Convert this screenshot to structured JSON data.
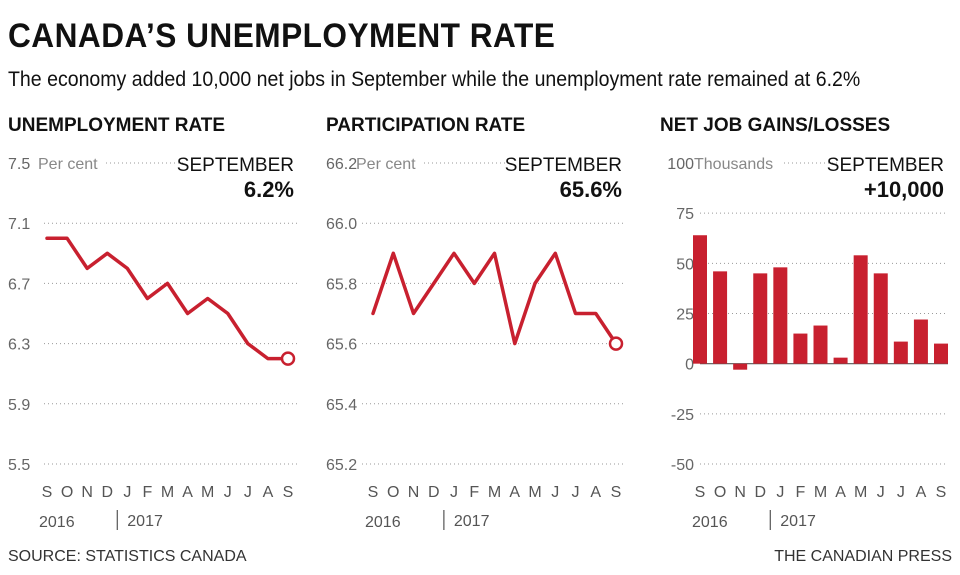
{
  "title": "CANADA’S UNEMPLOYMENT RATE",
  "subtitle": "The economy added 10,000 net jobs in September while the unemployment rate remained at 6.2%",
  "source": "SOURCE: STATISTICS CANADA",
  "credit": "THE CANADIAN PRESS",
  "colors": {
    "accent": "#c8202f",
    "grid": "#9a9a9a",
    "text": "#111111",
    "axis": "#555555"
  },
  "chart_data": [
    {
      "type": "line",
      "title": "UNEMPLOYMENT RATE",
      "unit_label": "Per cent",
      "callout_label": "SEPTEMBER",
      "callout_value": "6.2%",
      "categories": [
        "S",
        "O",
        "N",
        "D",
        "J",
        "F",
        "M",
        "A",
        "M",
        "J",
        "J",
        "A",
        "S"
      ],
      "year_labels": [
        "2016",
        "2017"
      ],
      "values": [
        7.0,
        7.0,
        6.8,
        6.9,
        6.8,
        6.6,
        6.7,
        6.5,
        6.6,
        6.5,
        6.3,
        6.2,
        6.2
      ],
      "ylim": [
        5.5,
        7.5
      ],
      "yticks": [
        "7.5",
        "7.1",
        "6.7",
        "6.3",
        "5.9",
        "5.5"
      ]
    },
    {
      "type": "line",
      "title": "PARTICIPATION RATE",
      "unit_label": "Per cent",
      "callout_label": "SEPTEMBER",
      "callout_value": "65.6%",
      "categories": [
        "S",
        "O",
        "N",
        "D",
        "J",
        "F",
        "M",
        "A",
        "M",
        "J",
        "J",
        "A",
        "S"
      ],
      "year_labels": [
        "2016",
        "2017"
      ],
      "values": [
        65.7,
        65.9,
        65.7,
        65.8,
        65.9,
        65.8,
        65.9,
        65.6,
        65.8,
        65.9,
        65.7,
        65.7,
        65.6
      ],
      "ylim": [
        65.2,
        66.2
      ],
      "yticks": [
        "66.2",
        "66.0",
        "65.8",
        "65.6",
        "65.4",
        "65.2"
      ]
    },
    {
      "type": "bar",
      "title": "NET JOB GAINS/LOSSES",
      "unit_label": "Thousands",
      "callout_label": "SEPTEMBER",
      "callout_value": "+10,000",
      "categories": [
        "S",
        "O",
        "N",
        "D",
        "J",
        "F",
        "M",
        "A",
        "M",
        "J",
        "J",
        "A",
        "S"
      ],
      "year_labels": [
        "2016",
        "2017"
      ],
      "values": [
        64,
        46,
        -3,
        45,
        48,
        15,
        19,
        3,
        54,
        45,
        11,
        22,
        10
      ],
      "ylim": [
        -50,
        100
      ],
      "yticks": [
        "100",
        "75",
        "50",
        "25",
        "0",
        "-25",
        "-50"
      ]
    }
  ]
}
